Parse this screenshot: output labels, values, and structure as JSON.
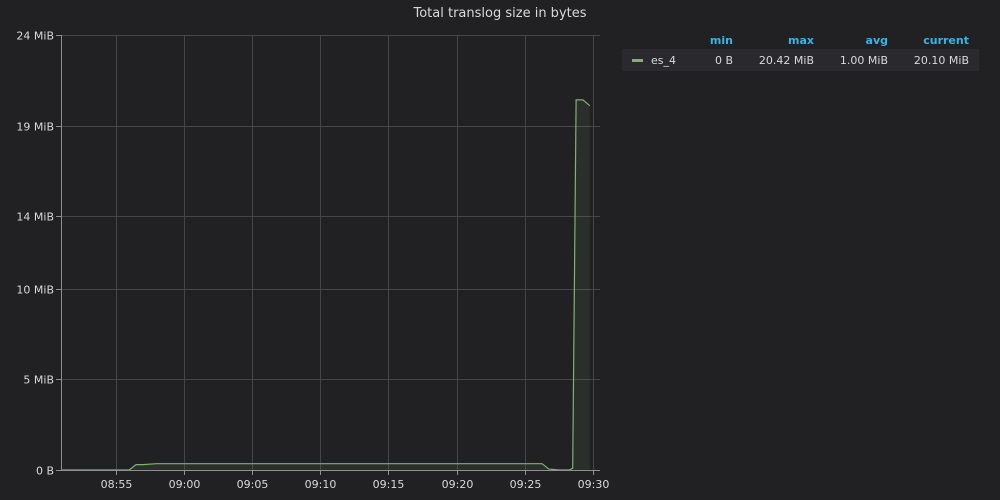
{
  "panel": {
    "title": "Total translog size in bytes"
  },
  "chart_data": {
    "type": "area",
    "title": "Total translog size in bytes",
    "xlabel": "",
    "ylabel": "",
    "y_unit": "MiB",
    "ylim": [
      0,
      24
    ],
    "yticks": [
      0,
      5,
      10,
      14,
      19,
      24
    ],
    "ytick_labels": [
      "0 B",
      "5 MiB",
      "10 MiB",
      "14 MiB",
      "19 MiB",
      "24 MiB"
    ],
    "xlim": [
      "08:51",
      "09:30:30"
    ],
    "xticks": [
      "08:55",
      "09:00",
      "09:05",
      "09:10",
      "09:15",
      "09:20",
      "09:25",
      "09:30"
    ],
    "grid": true,
    "legend_position": "right",
    "series": [
      {
        "name": "es_4",
        "color": "#7eb26d",
        "fill_opacity": 0.1,
        "points": [
          [
            "08:51",
            0
          ],
          [
            "08:55",
            0
          ],
          [
            "08:56",
            0
          ],
          [
            "08:56:30",
            0.3
          ],
          [
            "08:57",
            0.3
          ],
          [
            "08:58",
            0.35
          ],
          [
            "09:00",
            0.35
          ],
          [
            "09:05",
            0.35
          ],
          [
            "09:10",
            0.35
          ],
          [
            "09:15",
            0.35
          ],
          [
            "09:20",
            0.35
          ],
          [
            "09:25",
            0.35
          ],
          [
            "09:26:15",
            0.35
          ],
          [
            "09:26:45",
            0.05
          ],
          [
            "09:27:30",
            0
          ],
          [
            "09:28:15",
            0
          ],
          [
            "09:28:30",
            0.1
          ],
          [
            "09:28:45",
            20.42
          ],
          [
            "09:29:15",
            20.42
          ],
          [
            "09:29:45",
            20.1
          ]
        ]
      }
    ]
  },
  "legend": {
    "headers": {
      "min": "min",
      "max": "max",
      "avg": "avg",
      "current": "current"
    },
    "rows": [
      {
        "name": "es_4",
        "color": "#7eb26d",
        "min": "0 B",
        "max": "20.42 MiB",
        "avg": "1.00 MiB",
        "current": "20.10 MiB"
      }
    ]
  }
}
